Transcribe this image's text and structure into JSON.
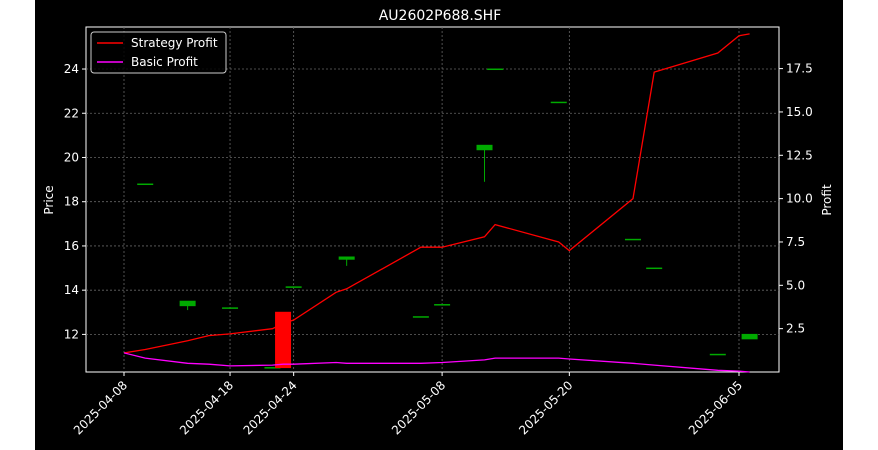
{
  "chart_data": {
    "type": "candlestick+line",
    "title": "AU2602P688.SHF",
    "ylabel_left": "Price",
    "ylabel_right": "Profit",
    "x_ticks": [
      "2025-04-08",
      "2025-04-18",
      "2025-04-24",
      "2025-05-08",
      "2025-05-20",
      "2025-06-05"
    ],
    "y_left_ticks": [
      12,
      14,
      16,
      18,
      20,
      22,
      24
    ],
    "y_left_range": [
      10.3,
      25.9
    ],
    "y_right_ticks": [
      2.5,
      5.0,
      7.5,
      10.0,
      12.5,
      15.0,
      17.5
    ],
    "y_right_range": [
      0.0,
      19.9
    ],
    "grid": true,
    "legend_position": "top-left",
    "dates": [
      "2025-04-08",
      "2025-04-10",
      "2025-04-14",
      "2025-04-16",
      "2025-04-18",
      "2025-04-22",
      "2025-04-23",
      "2025-04-24",
      "2025-04-28",
      "2025-04-29",
      "2025-05-06",
      "2025-05-08",
      "2025-05-12",
      "2025-05-13",
      "2025-05-19",
      "2025-05-20",
      "2025-05-26",
      "2025-05-28",
      "2025-06-03",
      "2025-06-05",
      "2025-06-06"
    ],
    "candles": [
      {
        "date_index": 1,
        "open": 18.8,
        "close": 18.8,
        "high": 18.8,
        "low": 18.8
      },
      {
        "date_index": 2,
        "open": 13.3,
        "close": 13.5,
        "high": 13.5,
        "low": 13.1
      },
      {
        "date_index": 4,
        "open": 13.2,
        "close": 13.2,
        "high": 13.2,
        "low": 13.2
      },
      {
        "date_index": 5,
        "open": 10.5,
        "close": 10.5,
        "high": 10.5,
        "low": 10.5
      },
      {
        "date_index": 6,
        "open": 13.0,
        "close": 10.5,
        "high": 13.0,
        "low": 10.5
      },
      {
        "date_index": 7,
        "open": 14.15,
        "close": 14.15,
        "high": 14.15,
        "low": 14.15
      },
      {
        "date_index": 9,
        "open": 15.4,
        "close": 15.5,
        "high": 15.5,
        "low": 15.1
      },
      {
        "date_index": 10,
        "open": 12.8,
        "close": 12.8,
        "high": 12.8,
        "low": 12.8
      },
      {
        "date_index": 11,
        "open": 13.35,
        "close": 13.35,
        "high": 13.35,
        "low": 13.35
      },
      {
        "date_index": 12,
        "open": 20.35,
        "close": 20.55,
        "high": 20.55,
        "low": 18.9
      },
      {
        "date_index": 13,
        "open": 24.0,
        "close": 24.0,
        "high": 24.0,
        "low": 24.0
      },
      {
        "date_index": 14,
        "open": 22.5,
        "close": 22.5,
        "high": 22.5,
        "low": 22.5
      },
      {
        "date_index": 16,
        "open": 16.3,
        "close": 16.3,
        "high": 16.3,
        "low": 16.3
      },
      {
        "date_index": 17,
        "open": 15.0,
        "close": 15.0,
        "high": 15.0,
        "low": 15.0
      },
      {
        "date_index": 18,
        "open": 11.1,
        "close": 11.1,
        "high": 11.1,
        "low": 11.1
      },
      {
        "date_index": 20,
        "open": 11.8,
        "close": 12.0,
        "high": 12.0,
        "low": 11.8
      }
    ],
    "series": [
      {
        "name": "Strategy Profit",
        "color": "#ff0000",
        "axis": "right",
        "values": [
          1.1,
          1.3,
          1.8,
          2.1,
          2.2,
          2.5,
          2.8,
          3.0,
          4.6,
          4.8,
          7.2,
          7.2,
          7.8,
          8.5,
          7.5,
          7.0,
          10.0,
          17.3,
          18.4,
          19.4,
          19.5
        ]
      },
      {
        "name": "Basic Profit",
        "color": "#ff00ff",
        "axis": "right",
        "values": [
          1.1,
          0.8,
          0.5,
          0.45,
          0.35,
          0.4,
          0.45,
          0.45,
          0.55,
          0.5,
          0.5,
          0.55,
          0.7,
          0.8,
          0.8,
          0.75,
          0.5,
          0.4,
          0.1,
          0.05,
          0.0
        ]
      }
    ]
  }
}
